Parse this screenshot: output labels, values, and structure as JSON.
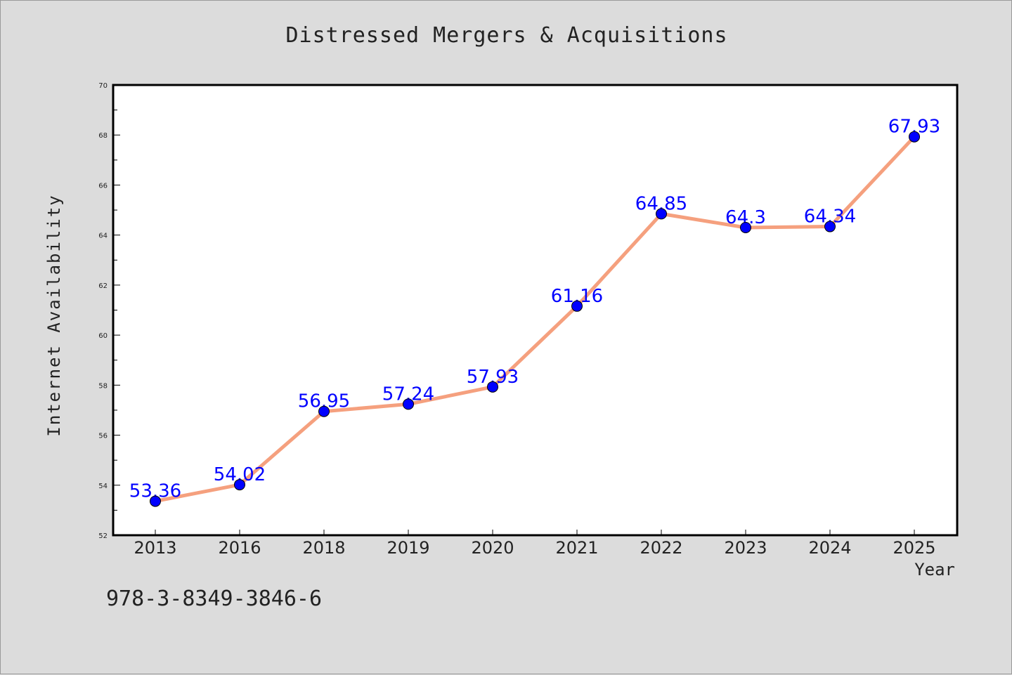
{
  "title": "Distressed Mergers & Acquisitions",
  "footer": "978-3-8349-3846-6",
  "colors": {
    "background": "#dcdcdc",
    "plot_background": "#ffffff",
    "line": "#f5a07e",
    "marker": "#0000ff",
    "data_label": "#0000ff"
  },
  "chart_data": {
    "type": "line",
    "title": "Distressed Mergers & Acquisitions",
    "xlabel": "Year",
    "ylabel": "Internet Availability",
    "categories": [
      "2013",
      "2016",
      "2018",
      "2019",
      "2020",
      "2021",
      "2022",
      "2023",
      "2024",
      "2025"
    ],
    "series": [
      {
        "values": [
          53.36,
          54.02,
          56.95,
          57.24,
          57.93,
          61.16,
          64.85,
          64.3,
          64.34,
          67.93
        ],
        "labels": [
          "53.36",
          "54.02",
          "56.95",
          "57.24",
          "57.93",
          "61.16",
          "64.85",
          "64.3",
          "64.34",
          "67.93"
        ]
      }
    ],
    "ylim": [
      52,
      70
    ],
    "y_ticks": [
      52,
      54,
      56,
      58,
      60,
      62,
      64,
      66,
      68,
      70
    ],
    "grid": false,
    "legend": "none"
  }
}
